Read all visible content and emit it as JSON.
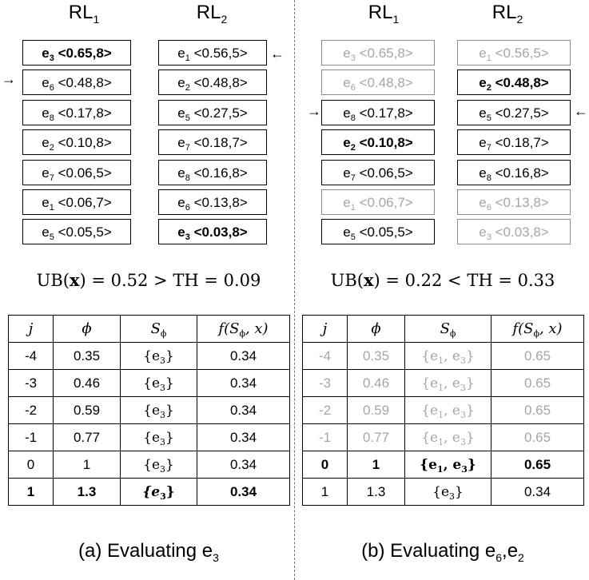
{
  "panel_a": {
    "rl1_title_main": "RL",
    "rl1_title_sub": "1",
    "rl2_title_main": "RL",
    "rl2_title_sub": "2",
    "rl1": [
      {
        "entity": "e",
        "sub": "3",
        "tuple": "<0.65,8>",
        "style": "bold"
      },
      {
        "entity": "e",
        "sub": "6",
        "tuple": "<0.48,8>",
        "style": "normal"
      },
      {
        "entity": "e",
        "sub": "8",
        "tuple": "<0.17,8>",
        "style": "normal"
      },
      {
        "entity": "e",
        "sub": "2",
        "tuple": "<0.10,8>",
        "style": "normal"
      },
      {
        "entity": "e",
        "sub": "7",
        "tuple": "<0.06,5>",
        "style": "normal"
      },
      {
        "entity": "e",
        "sub": "1",
        "tuple": "<0.06,7>",
        "style": "normal"
      },
      {
        "entity": "e",
        "sub": "5",
        "tuple": "<0.05,5>",
        "style": "normal"
      }
    ],
    "rl2": [
      {
        "entity": "e",
        "sub": "1",
        "tuple": "<0.56,5>",
        "style": "normal"
      },
      {
        "entity": "e",
        "sub": "2",
        "tuple": "<0.48,8>",
        "style": "normal"
      },
      {
        "entity": "e",
        "sub": "5",
        "tuple": "<0.27,5>",
        "style": "normal"
      },
      {
        "entity": "e",
        "sub": "7",
        "tuple": "<0.18,7>",
        "style": "normal"
      },
      {
        "entity": "e",
        "sub": "8",
        "tuple": "<0.16,8>",
        "style": "normal"
      },
      {
        "entity": "e",
        "sub": "6",
        "tuple": "<0.13,8>",
        "style": "normal"
      },
      {
        "entity": "e",
        "sub": "3",
        "tuple": "<0.03,8>",
        "style": "bold"
      }
    ],
    "left_arrow": "→",
    "right_arrow": "←",
    "ub_label": "UB(",
    "ub_var": "x",
    "ub_rest": ") = 0.52 > TH = 0.09",
    "table_headers": {
      "j": "j",
      "phi": "ϕ",
      "s": "S",
      "s_sub": "ϕ",
      "f": "f(S",
      "f_sub": "ϕ",
      "f_rest": ", x)"
    },
    "rows": [
      {
        "j": "-4",
        "phi": "0.35",
        "s": "{e",
        "s_sub": "3",
        "s_end": "}",
        "f": "0.34",
        "style": "normal"
      },
      {
        "j": "-3",
        "phi": "0.46",
        "s": "{e",
        "s_sub": "3",
        "s_end": "}",
        "f": "0.34",
        "style": "normal"
      },
      {
        "j": "-2",
        "phi": "0.59",
        "s": "{e",
        "s_sub": "3",
        "s_end": "}",
        "f": "0.34",
        "style": "normal"
      },
      {
        "j": "-1",
        "phi": "0.77",
        "s": "{e",
        "s_sub": "3",
        "s_end": "}",
        "f": "0.34",
        "style": "normal"
      },
      {
        "j": "0",
        "phi": "1",
        "s": "{e",
        "s_sub": "3",
        "s_end": "}",
        "f": "0.34",
        "style": "normal"
      },
      {
        "j": "1",
        "phi": "1.3",
        "s": "{e",
        "s_sub": "3",
        "s_end": "}",
        "f": "0.34",
        "style": "bold"
      }
    ],
    "caption": "(a) Evaluating e",
    "caption_sub": "3"
  },
  "panel_b": {
    "rl1_title_main": "RL",
    "rl1_title_sub": "1",
    "rl2_title_main": "RL",
    "rl2_title_sub": "2",
    "rl1": [
      {
        "entity": "e",
        "sub": "3",
        "tuple": "<0.65,8>",
        "style": "gray"
      },
      {
        "entity": "e",
        "sub": "6",
        "tuple": "<0.48,8>",
        "style": "gray"
      },
      {
        "entity": "e",
        "sub": "8",
        "tuple": "<0.17,8>",
        "style": "normal"
      },
      {
        "entity": "e",
        "sub": "2",
        "tuple": "<0.10,8>",
        "style": "bold"
      },
      {
        "entity": "e",
        "sub": "7",
        "tuple": "<0.06,5>",
        "style": "normal"
      },
      {
        "entity": "e",
        "sub": "1",
        "tuple": "<0.06,7>",
        "style": "gray"
      },
      {
        "entity": "e",
        "sub": "5",
        "tuple": "<0.05,5>",
        "style": "normal"
      }
    ],
    "rl2": [
      {
        "entity": "e",
        "sub": "1",
        "tuple": "<0.56,5>",
        "style": "gray"
      },
      {
        "entity": "e",
        "sub": "2",
        "tuple": "<0.48,8>",
        "style": "bold"
      },
      {
        "entity": "e",
        "sub": "5",
        "tuple": "<0.27,5>",
        "style": "normal"
      },
      {
        "entity": "e",
        "sub": "7",
        "tuple": "<0.18,7>",
        "style": "normal"
      },
      {
        "entity": "e",
        "sub": "8",
        "tuple": "<0.16,8>",
        "style": "normal"
      },
      {
        "entity": "e",
        "sub": "6",
        "tuple": "<0.13,8>",
        "style": "gray"
      },
      {
        "entity": "e",
        "sub": "3",
        "tuple": "<0.03,8>",
        "style": "gray"
      }
    ],
    "left_arrow": "→",
    "right_arrow": "←",
    "ub_label": "UB(",
    "ub_var": "x",
    "ub_rest": ") = 0.22 < TH = 0.33",
    "table_headers": {
      "j": "j",
      "phi": "ϕ",
      "s": "S",
      "s_sub": "ϕ",
      "f": "f(S",
      "f_sub": "ϕ",
      "f_rest": ", x)"
    },
    "rows": [
      {
        "j": "-4",
        "phi": "0.35",
        "s": "{e",
        "s_sub": "1",
        "s_mid": ", e",
        "s_sub2": "3",
        "s_end": "}",
        "f": "0.65",
        "style": "gray"
      },
      {
        "j": "-3",
        "phi": "0.46",
        "s": "{e",
        "s_sub": "1",
        "s_mid": ", e",
        "s_sub2": "3",
        "s_end": "}",
        "f": "0.65",
        "style": "gray"
      },
      {
        "j": "-2",
        "phi": "0.59",
        "s": "{e",
        "s_sub": "1",
        "s_mid": ", e",
        "s_sub2": "3",
        "s_end": "}",
        "f": "0.65",
        "style": "gray"
      },
      {
        "j": "-1",
        "phi": "0.77",
        "s": "{e",
        "s_sub": "1",
        "s_mid": ", e",
        "s_sub2": "3",
        "s_end": "}",
        "f": "0.65",
        "style": "gray"
      },
      {
        "j": "0",
        "phi": "1",
        "s": "{e",
        "s_sub": "1",
        "s_mid": ", e",
        "s_sub2": "3",
        "s_end": "}",
        "f": "0.65",
        "style": "bold"
      },
      {
        "j": "1",
        "phi": "1.3",
        "s": "{e",
        "s_sub": "3",
        "s_end": "}",
        "f": "0.34",
        "style": "normal"
      }
    ],
    "caption": "(b) Evaluating e",
    "caption_sub": "6",
    "caption_mid": ",e",
    "caption_sub2": "2"
  }
}
